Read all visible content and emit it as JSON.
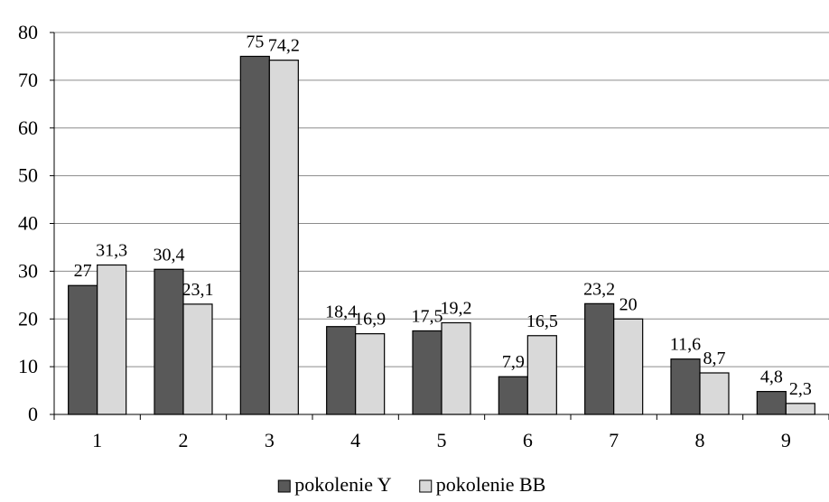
{
  "chart_data": {
    "type": "bar",
    "title": "",
    "xlabel": "",
    "ylabel": "",
    "categories": [
      "1",
      "2",
      "3",
      "4",
      "5",
      "6",
      "7",
      "8",
      "9"
    ],
    "series": [
      {
        "name": "pokolenie Y",
        "color": "#595959",
        "values": [
          27,
          30.4,
          75,
          18.4,
          17.5,
          7.9,
          23.2,
          11.6,
          4.8
        ],
        "labels": [
          "27",
          "30,4",
          "75",
          "18,4",
          "17,5",
          "7,9",
          "23,2",
          "11,6",
          "4,8"
        ]
      },
      {
        "name": "pokolenie BB",
        "color": "#d9d9d9",
        "values": [
          31.3,
          23.1,
          74.2,
          16.9,
          19.2,
          16.5,
          20,
          8.7,
          2.3
        ],
        "labels": [
          "31,3",
          "23,1",
          "74,2",
          "16,9",
          "19,2",
          "16,5",
          "20",
          "8,7",
          "2,3"
        ]
      }
    ],
    "ylim": [
      0,
      80
    ],
    "yticks": [
      "0",
      "10",
      "20",
      "30",
      "40",
      "50",
      "60",
      "70",
      "80"
    ],
    "grid": true,
    "legend": "bottom"
  }
}
